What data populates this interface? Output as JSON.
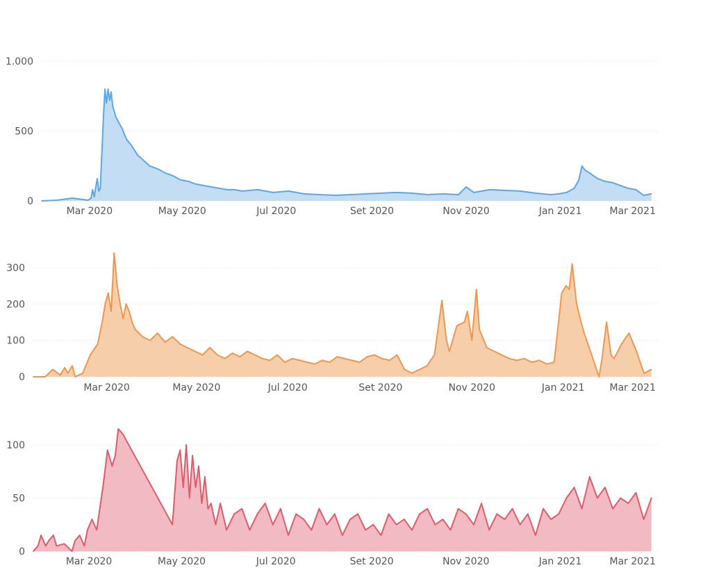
{
  "chart_data": [
    {
      "type": "area",
      "title": "",
      "color": "#5ea6e3",
      "fill": "#c3ddf4",
      "ylim": [
        0,
        1000
      ],
      "yticks": [
        {
          "v": 0,
          "label": "0"
        },
        {
          "v": 500,
          "label": "500"
        },
        {
          "v": 1000,
          "label": "1.000"
        }
      ],
      "xticks": [
        {
          "day": 31,
          "label": "Mar 2020"
        },
        {
          "day": 91,
          "label": "May 2020"
        },
        {
          "day": 152,
          "label": "Jul 2020"
        },
        {
          "day": 214,
          "label": "Set 2020"
        },
        {
          "day": 275,
          "label": "Nov 2020"
        },
        {
          "day": 336,
          "label": "Jan 2021"
        },
        {
          "day": 395,
          "label": "Mar 2021"
        }
      ],
      "x": [
        0,
        10,
        20,
        30,
        32,
        33,
        34,
        36,
        37,
        38,
        40,
        41,
        42,
        43,
        44,
        45,
        46,
        48,
        50,
        52,
        55,
        58,
        62,
        66,
        70,
        75,
        80,
        85,
        90,
        95,
        100,
        105,
        110,
        115,
        120,
        125,
        130,
        140,
        150,
        160,
        170,
        180,
        190,
        200,
        210,
        220,
        230,
        240,
        250,
        260,
        270,
        275,
        280,
        290,
        300,
        310,
        320,
        330,
        335,
        340,
        345,
        348,
        350,
        352,
        355,
        360,
        365,
        370,
        375,
        380,
        385,
        390,
        395
      ],
      "values": [
        0,
        5,
        20,
        5,
        20,
        80,
        30,
        160,
        70,
        90,
        600,
        800,
        700,
        800,
        720,
        780,
        680,
        600,
        560,
        520,
        440,
        400,
        330,
        290,
        250,
        230,
        200,
        180,
        150,
        140,
        120,
        110,
        100,
        90,
        80,
        80,
        70,
        80,
        60,
        70,
        50,
        45,
        40,
        45,
        50,
        55,
        60,
        55,
        45,
        50,
        45,
        100,
        60,
        80,
        75,
        70,
        55,
        45,
        50,
        60,
        90,
        150,
        250,
        220,
        200,
        160,
        140,
        130,
        110,
        90,
        80,
        40,
        50
      ]
    },
    {
      "type": "area",
      "title": "",
      "color": "#ee9650",
      "fill": "#f6cfaa",
      "ylim": [
        0,
        340
      ],
      "yticks": [
        {
          "v": 0,
          "label": "0"
        },
        {
          "v": 100,
          "label": "100"
        },
        {
          "v": 200,
          "label": "200"
        },
        {
          "v": 300,
          "label": "300"
        }
      ],
      "xticks": [
        {
          "day": 31,
          "label": "Mar 2020"
        },
        {
          "day": 91,
          "label": "May 2020"
        },
        {
          "day": 152,
          "label": "Jul 2020"
        },
        {
          "day": 214,
          "label": "Set 2020"
        },
        {
          "day": 275,
          "label": "Nov 2020"
        },
        {
          "day": 336,
          "label": "Jan 2021"
        },
        {
          "day": 395,
          "label": "Mar 2021"
        }
      ],
      "x": [
        -18,
        -10,
        -5,
        0,
        3,
        5,
        8,
        10,
        15,
        20,
        25,
        28,
        30,
        32,
        34,
        36,
        38,
        40,
        42,
        44,
        46,
        48,
        50,
        55,
        60,
        65,
        70,
        75,
        80,
        85,
        90,
        95,
        100,
        105,
        110,
        115,
        120,
        125,
        130,
        135,
        140,
        145,
        150,
        155,
        160,
        165,
        170,
        175,
        180,
        185,
        190,
        195,
        200,
        205,
        210,
        215,
        220,
        225,
        230,
        235,
        240,
        245,
        250,
        255,
        258,
        260,
        265,
        270,
        272,
        275,
        278,
        280,
        285,
        290,
        295,
        300,
        305,
        310,
        315,
        320,
        325,
        330,
        335,
        338,
        340,
        342,
        345,
        348,
        350,
        355,
        360,
        362,
        365,
        368,
        370,
        375,
        380,
        385,
        390,
        395
      ],
      "values": [
        0,
        0,
        20,
        5,
        25,
        10,
        30,
        0,
        10,
        60,
        90,
        150,
        200,
        230,
        180,
        340,
        250,
        200,
        160,
        200,
        180,
        150,
        130,
        110,
        100,
        120,
        95,
        110,
        90,
        80,
        70,
        60,
        80,
        60,
        50,
        65,
        55,
        70,
        60,
        50,
        45,
        60,
        40,
        50,
        45,
        40,
        35,
        45,
        40,
        55,
        50,
        45,
        40,
        55,
        60,
        50,
        45,
        60,
        20,
        10,
        20,
        30,
        60,
        210,
        100,
        70,
        140,
        150,
        180,
        100,
        240,
        130,
        80,
        70,
        60,
        50,
        45,
        50,
        40,
        45,
        35,
        40,
        230,
        250,
        240,
        310,
        200,
        150,
        120,
        60,
        0,
        50,
        150,
        60,
        50,
        90,
        120,
        70,
        10,
        20
      ]
    },
    {
      "type": "area",
      "title": "",
      "color": "#de5b6a",
      "fill": "#f2bac3",
      "ylim": [
        0,
        115
      ],
      "yticks": [
        {
          "v": 0,
          "label": "0"
        },
        {
          "v": 50,
          "label": "50"
        },
        {
          "v": 100,
          "label": "100"
        }
      ],
      "xticks": [
        {
          "day": 31,
          "label": "Mar 2020"
        },
        {
          "day": 91,
          "label": "May 2020"
        },
        {
          "day": 152,
          "label": "Jul 2020"
        },
        {
          "day": 214,
          "label": "Set 2020"
        },
        {
          "day": 275,
          "label": "Nov 2020"
        },
        {
          "day": 336,
          "label": "Jan 2021"
        },
        {
          "day": 395,
          "label": "Mar 2021"
        }
      ],
      "x": [
        -5,
        -2,
        0,
        3,
        5,
        8,
        10,
        15,
        20,
        22,
        25,
        28,
        30,
        33,
        36,
        40,
        43,
        46,
        48,
        50,
        53,
        85,
        88,
        90,
        92,
        94,
        96,
        98,
        100,
        102,
        104,
        106,
        108,
        110,
        113,
        116,
        120,
        125,
        130,
        135,
        140,
        145,
        150,
        155,
        160,
        165,
        170,
        175,
        180,
        185,
        190,
        195,
        200,
        205,
        210,
        215,
        220,
        225,
        230,
        235,
        240,
        245,
        250,
        255,
        260,
        265,
        270,
        275,
        280,
        285,
        290,
        295,
        300,
        305,
        310,
        315,
        320,
        325,
        330,
        335,
        340,
        345,
        350,
        355,
        360,
        365,
        370,
        375,
        380,
        385,
        390,
        395
      ],
      "values": [
        0,
        5,
        15,
        5,
        10,
        15,
        5,
        7,
        0,
        10,
        15,
        5,
        20,
        30,
        20,
        60,
        95,
        80,
        90,
        115,
        110,
        25,
        85,
        95,
        60,
        100,
        50,
        90,
        60,
        80,
        45,
        70,
        40,
        45,
        25,
        45,
        20,
        35,
        40,
        20,
        35,
        45,
        25,
        40,
        15,
        35,
        30,
        20,
        40,
        25,
        35,
        15,
        30,
        35,
        20,
        25,
        15,
        35,
        25,
        30,
        20,
        35,
        40,
        25,
        30,
        20,
        40,
        35,
        25,
        45,
        20,
        35,
        30,
        40,
        25,
        35,
        15,
        40,
        30,
        35,
        50,
        60,
        40,
        70,
        50,
        60,
        40,
        50,
        45,
        55,
        30,
        50
      ]
    }
  ]
}
